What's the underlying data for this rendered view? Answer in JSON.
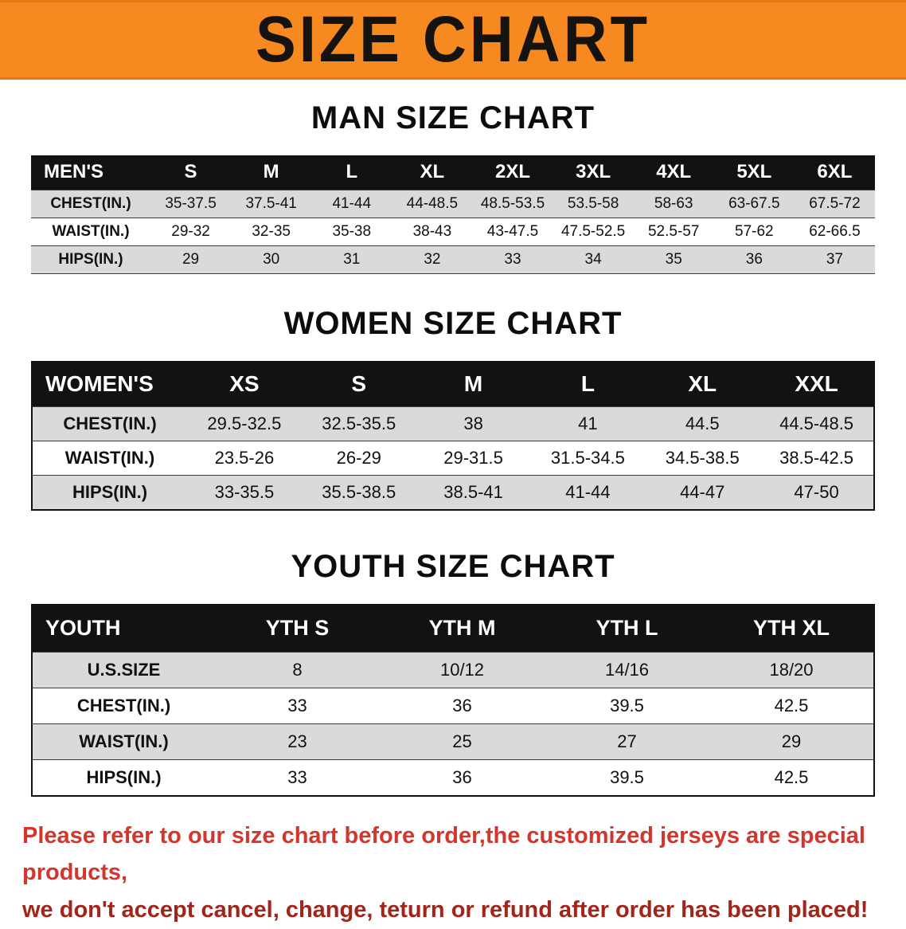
{
  "banner": {
    "title": "SIZE CHART"
  },
  "colors": {
    "banner_bg": "#F6891F",
    "table_header_bg": "#121212",
    "row_alt_bg": "#DADADA",
    "disclaimer_red_1": "#D2362C",
    "disclaimer_red_2": "#A1251B"
  },
  "men": {
    "heading": "MAN SIZE CHART",
    "label": "MEN'S",
    "columns": [
      "S",
      "M",
      "L",
      "XL",
      "2XL",
      "3XL",
      "4XL",
      "5XL",
      "6XL"
    ],
    "rows": [
      {
        "label": "CHEST(IN.)",
        "values": [
          "35-37.5",
          "37.5-41",
          "41-44",
          "44-48.5",
          "48.5-53.5",
          "53.5-58",
          "58-63",
          "63-67.5",
          "67.5-72"
        ]
      },
      {
        "label": "WAIST(IN.)",
        "values": [
          "29-32",
          "32-35",
          "35-38",
          "38-43",
          "43-47.5",
          "47.5-52.5",
          "52.5-57",
          "57-62",
          "62-66.5"
        ]
      },
      {
        "label": "HIPS(IN.)",
        "values": [
          "29",
          "30",
          "31",
          "32",
          "33",
          "34",
          "35",
          "36",
          "37"
        ]
      }
    ]
  },
  "women": {
    "heading": "WOMEN SIZE CHART",
    "label": "WOMEN'S",
    "columns": [
      "XS",
      "S",
      "M",
      "L",
      "XL",
      "XXL"
    ],
    "rows": [
      {
        "label": "CHEST(IN.)",
        "values": [
          "29.5-32.5",
          "32.5-35.5",
          "38",
          "41",
          "44.5",
          "44.5-48.5"
        ]
      },
      {
        "label": "WAIST(IN.)",
        "values": [
          "23.5-26",
          "26-29",
          "29-31.5",
          "31.5-34.5",
          "34.5-38.5",
          "38.5-42.5"
        ]
      },
      {
        "label": "HIPS(IN.)",
        "values": [
          "33-35.5",
          "35.5-38.5",
          "38.5-41",
          "41-44",
          "44-47",
          "47-50"
        ]
      }
    ]
  },
  "youth": {
    "heading": "YOUTH SIZE CHART",
    "label": "YOUTH",
    "columns": [
      "YTH S",
      "YTH M",
      "YTH L",
      "YTH XL"
    ],
    "rows": [
      {
        "label": "U.S.SIZE",
        "values": [
          "8",
          "10/12",
          "14/16",
          "18/20"
        ]
      },
      {
        "label": "CHEST(IN.)",
        "values": [
          "33",
          "36",
          "39.5",
          "42.5"
        ]
      },
      {
        "label": "WAIST(IN.)",
        "values": [
          "23",
          "25",
          "27",
          "29"
        ]
      },
      {
        "label": "HIPS(IN.)",
        "values": [
          "33",
          "36",
          "39.5",
          "42.5"
        ]
      }
    ]
  },
  "disclaimer": {
    "line1": "Please refer to our size chart before order,the customized jerseys are special products,",
    "line2": "we don't accept cancel, change, teturn or refund after order has been placed!"
  }
}
